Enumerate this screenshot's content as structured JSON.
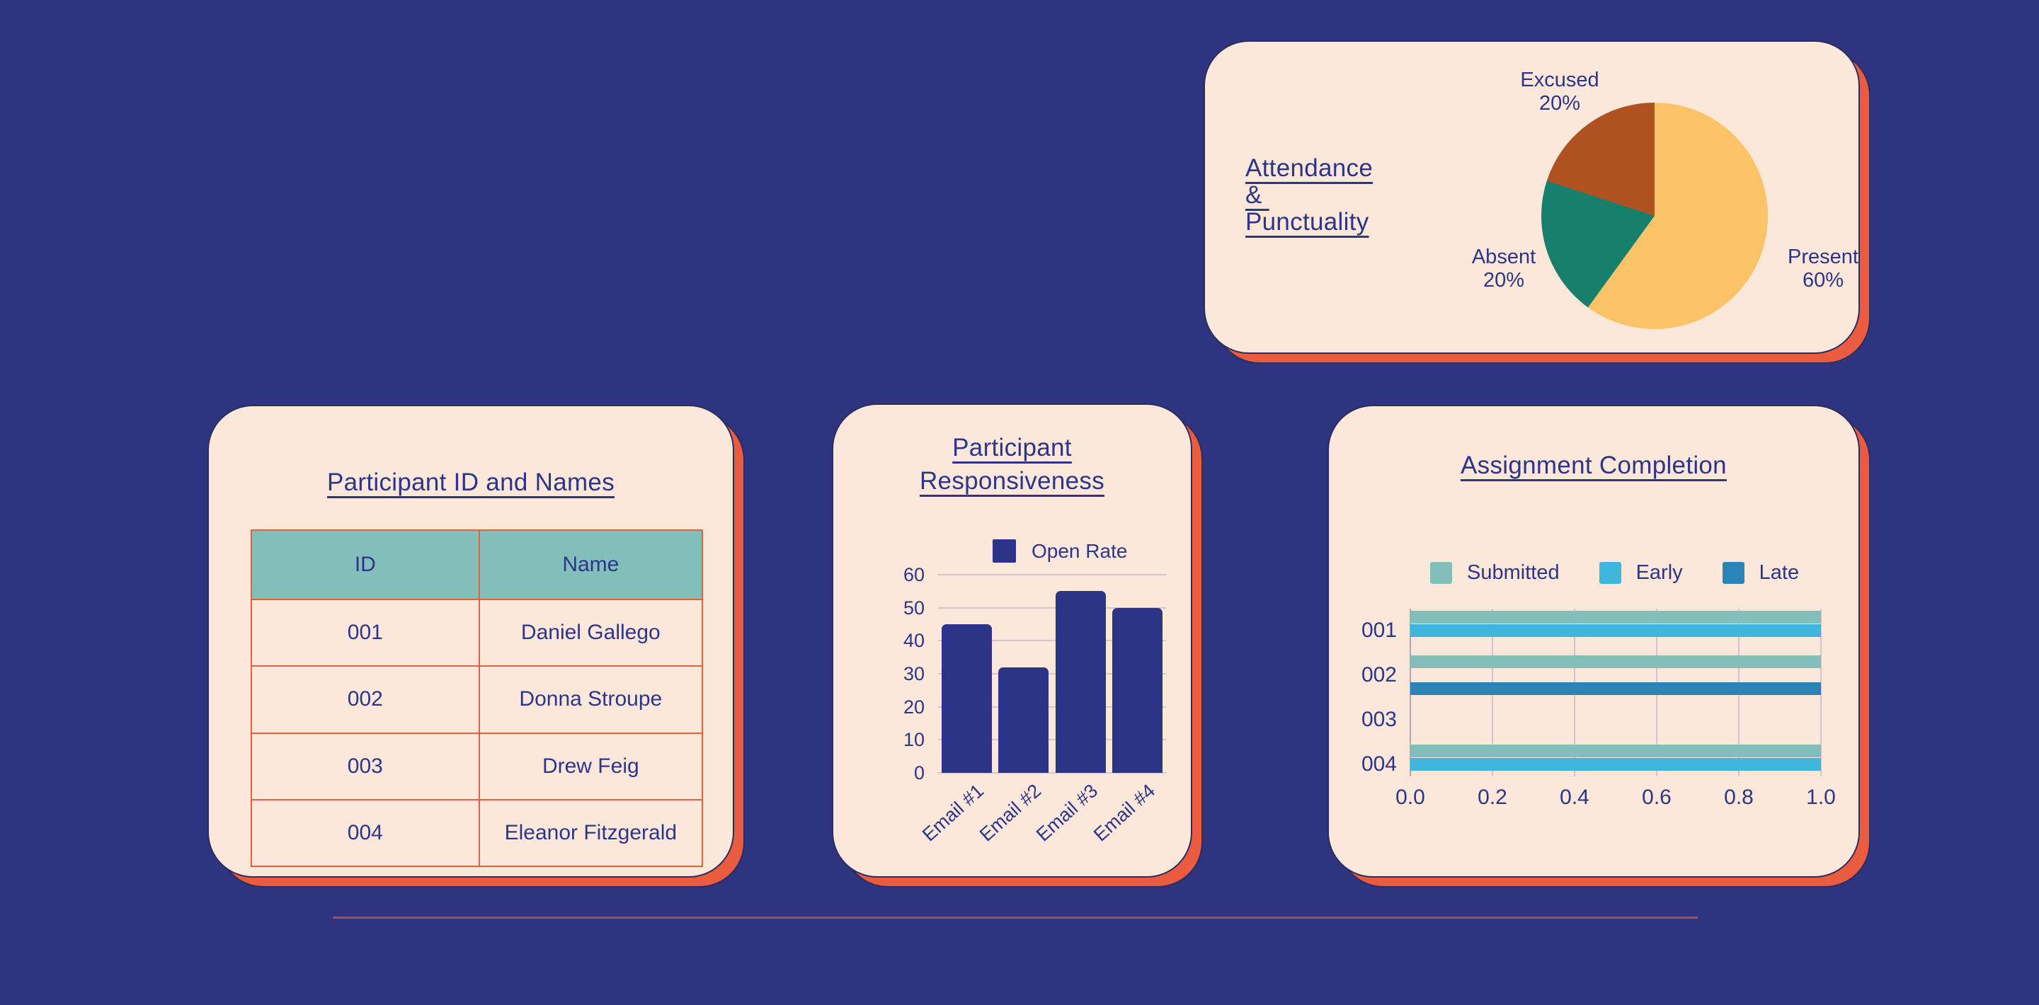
{
  "canvas": {
    "background": "#2E3480",
    "divider_color": "#AC4F48"
  },
  "cards": {
    "attendance": {
      "title_lines": [
        "Attendance",
        "& ",
        "Punctuality"
      ]
    },
    "participants": {
      "title": "Participant ID and Names",
      "table": {
        "headers": [
          "ID",
          "Name"
        ],
        "rows": [
          [
            "001",
            "Daniel Gallego"
          ],
          [
            "002",
            "Donna Stroupe"
          ],
          [
            "003",
            "Drew Feig"
          ],
          [
            "004",
            "Eleanor Fitzgerald"
          ]
        ],
        "header_bg": "#82BFBA",
        "border_color": "#E8603A"
      }
    },
    "responsiveness": {
      "title_lines": [
        "Participant",
        "Responsiveness"
      ]
    },
    "assignment": {
      "title": "Assignment Completion"
    }
  },
  "chart_data": [
    {
      "type": "pie",
      "title": "Attendance & Punctuality",
      "start": "12-oclock",
      "direction": "clockwise",
      "slices": [
        {
          "label": "Present",
          "pct": 60,
          "color": "#FBC367",
          "callout": [
            "Present",
            "60%"
          ]
        },
        {
          "label": "Absent",
          "pct": 20,
          "color": "#17806D",
          "callout": [
            "Absent",
            "20%"
          ]
        },
        {
          "label": "Excused",
          "pct": 20,
          "color": "#B05122",
          "callout": [
            "Excused",
            "20%"
          ]
        }
      ]
    },
    {
      "type": "bar",
      "title": "Participant Responsiveness",
      "legend": [
        {
          "name": "Open Rate",
          "color": "#2B3487"
        }
      ],
      "categories": [
        "Email #1",
        "Email #2",
        "Email #3",
        "Email #4"
      ],
      "values": [
        45,
        32,
        55,
        50
      ],
      "ylim": [
        0,
        60
      ],
      "yticks": [
        0,
        10,
        20,
        30,
        40,
        50,
        60
      ],
      "grid": "horizontal",
      "bar_color": "#2B3487"
    },
    {
      "type": "barh",
      "title": "Assignment Completion",
      "categories": [
        "001",
        "002",
        "003",
        "004"
      ],
      "series": [
        {
          "name": "Submitted",
          "color": "#82BFBA",
          "values": [
            1.0,
            1.0,
            0,
            1.0
          ]
        },
        {
          "name": "Early",
          "color": "#41B6DD",
          "values": [
            1.0,
            0,
            0,
            1.0
          ]
        },
        {
          "name": "Late",
          "color": "#2C83B6",
          "values": [
            0,
            1.0,
            0,
            0
          ]
        }
      ],
      "xlim": [
        0,
        1.0
      ],
      "xticks": [
        "0.0",
        "0.2",
        "0.4",
        "0.6",
        "0.8",
        "1.0"
      ],
      "grid": "vertical",
      "legend_position": "top"
    }
  ]
}
